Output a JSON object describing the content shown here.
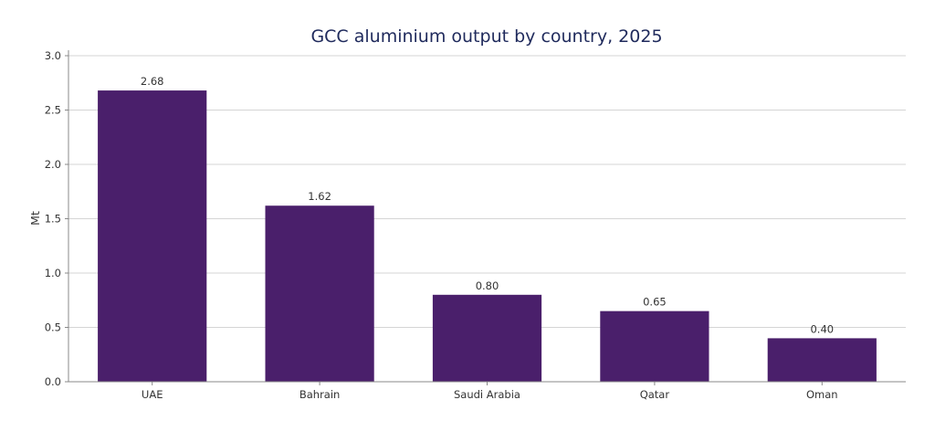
{
  "chart_data": {
    "type": "bar",
    "title": "GCC aluminium output by country, 2025",
    "xlabel": "",
    "ylabel": "Mt",
    "categories": [
      "UAE",
      "Bahrain",
      "Saudi Arabia",
      "Qatar",
      "Oman"
    ],
    "values": [
      2.68,
      1.62,
      0.8,
      0.65,
      0.4
    ],
    "value_labels": [
      "2.68",
      "1.62",
      "0.80",
      "0.65",
      "0.40"
    ],
    "ylim": [
      0,
      3.0
    ],
    "yticks": [
      0.0,
      0.5,
      1.0,
      1.5,
      2.0,
      2.5,
      3.0
    ],
    "ytick_labels": [
      "0.0",
      "0.5",
      "1.0",
      "1.5",
      "2.0",
      "2.5",
      "3.0"
    ],
    "grid": "horizontal",
    "legend": "none",
    "colors": {
      "bar": "#4a1f6b",
      "title": "#1f2a5c",
      "grid": "#d5d5d5",
      "axis": "#888888",
      "text": "#333333"
    }
  }
}
